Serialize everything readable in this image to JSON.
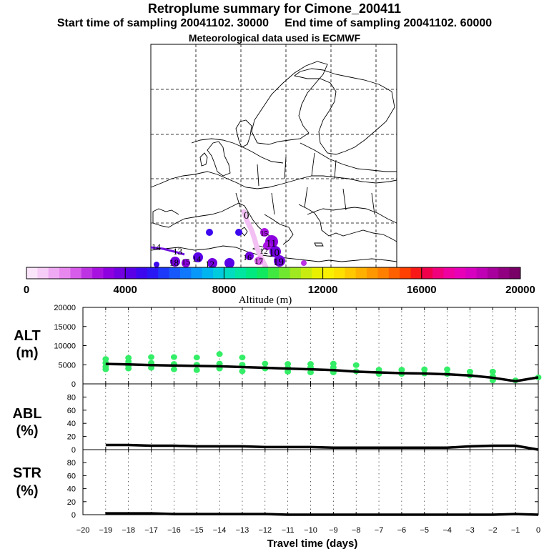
{
  "title": "Retroplume summary for Cimone_200411",
  "subtitle_start": "Start time of sampling 20041102. 30000",
  "subtitle_end": "End time of sampling 20041102. 60000",
  "met_line": "Meteorological data used is ECMWF",
  "map": {
    "plume_labels": [
      "0",
      "15",
      "11",
      "12",
      "10",
      "17",
      "19",
      "16",
      "14",
      "13",
      "18",
      "15",
      "12",
      "14"
    ]
  },
  "colorbar": {
    "label": "Altitude (m)",
    "tick_labels": [
      "0",
      "4000",
      "8000",
      "12000",
      "16000",
      "20000"
    ],
    "colors": [
      "#fbe5fb",
      "#f6cdf6",
      "#efaaf3",
      "#e888ef",
      "#d75ce9",
      "#bd33e3",
      "#a812e0",
      "#8d00e0",
      "#7200e0",
      "#5a00e6",
      "#3d08ee",
      "#2a18f4",
      "#1c38f8",
      "#1758fc",
      "#0f78fc",
      "#0898fa",
      "#00b4f0",
      "#00ccdd",
      "#00dcc0",
      "#00e6a0",
      "#00e880",
      "#10e860",
      "#40e840",
      "#70e830",
      "#a0e820",
      "#c8ec10",
      "#e8f000",
      "#f8f000",
      "#fde000",
      "#ffc800",
      "#ffb000",
      "#ff9800",
      "#ff8000",
      "#ff6000",
      "#ff4000",
      "#f81818",
      "#f0004a",
      "#f0007a",
      "#ef00a0",
      "#e800b8",
      "#d800c0",
      "#c000b4",
      "#a8009c",
      "#900080",
      "#780066"
    ]
  },
  "panels": {
    "alt": {
      "label_line1": "ALT",
      "label_line2": "(m)"
    },
    "abl": {
      "label_line1": "ABL",
      "label_line2": "(%)"
    },
    "str": {
      "label_line1": "STR",
      "label_line2": "(%)"
    }
  },
  "chart_data": [
    {
      "type": "line",
      "name": "ALT",
      "ylabel": "ALT (m)",
      "ylim": [
        0,
        20000
      ],
      "yticks": [
        0,
        5000,
        10000,
        15000,
        20000
      ],
      "x": [
        -19,
        -18,
        -17,
        -16,
        -15,
        -14,
        -13,
        -12,
        -11,
        -10,
        -9,
        -8,
        -7,
        -6,
        -5,
        -4,
        -3,
        -2,
        -1,
        0
      ],
      "mean": [
        5200,
        5100,
        4900,
        4800,
        4700,
        4600,
        4400,
        4200,
        4000,
        3800,
        3600,
        3200,
        3000,
        2800,
        2700,
        2500,
        2200,
        1600,
        700,
        1700
      ],
      "scatter": {
        "color": "#33ee66",
        "x": [
          -19,
          -19,
          -19,
          -19,
          -18,
          -18,
          -18,
          -18,
          -17,
          -17,
          -17,
          -16,
          -16,
          -16,
          -15,
          -15,
          -15,
          -14,
          -14,
          -14,
          -13,
          -13,
          -13,
          -12,
          -12,
          -11,
          -11,
          -11,
          -10,
          -10,
          -10,
          -9,
          -9,
          -9,
          -8,
          -8,
          -7,
          -7,
          -6,
          -6,
          -5,
          -5,
          -4,
          -4,
          -3,
          -3,
          -2,
          -2,
          -2,
          -1,
          0
        ],
        "y": [
          6500,
          5500,
          4500,
          3800,
          6800,
          5800,
          4800,
          4000,
          7000,
          5500,
          4200,
          7000,
          5200,
          3800,
          6900,
          5000,
          3600,
          7800,
          5300,
          4000,
          6900,
          5000,
          3300,
          5300,
          4000,
          5200,
          4200,
          3200,
          5200,
          4300,
          3000,
          5300,
          4300,
          3000,
          4900,
          3300,
          3700,
          2600,
          3700,
          2600,
          3800,
          2700,
          3800,
          2600,
          3200,
          2200,
          3200,
          2000,
          900,
          900,
          1700
        ]
      },
      "xlim": [
        -20,
        0
      ],
      "xlabel": "Travel time (days)"
    },
    {
      "type": "line",
      "name": "ABL",
      "ylabel": "ABL (%)",
      "ylim": [
        0,
        100
      ],
      "yticks": [
        0,
        20,
        40,
        60,
        80
      ],
      "x": [
        -19,
        -18,
        -17,
        -16,
        -15,
        -14,
        -13,
        -12,
        -11,
        -10,
        -9,
        -8,
        -7,
        -6,
        -5,
        -4,
        -3,
        -2,
        -1,
        0
      ],
      "values": [
        7,
        7,
        6,
        6,
        5,
        5,
        5,
        4,
        4,
        4,
        3,
        3,
        3,
        3,
        3,
        3,
        5,
        6,
        6,
        0
      ]
    },
    {
      "type": "line",
      "name": "STR",
      "ylabel": "STR (%)",
      "ylim": [
        0,
        100
      ],
      "yticks": [
        0,
        20,
        40,
        60,
        80
      ],
      "x": [
        -19,
        -18,
        -17,
        -16,
        -15,
        -14,
        -13,
        -12,
        -11,
        -10,
        -9,
        -8,
        -7,
        -6,
        -5,
        -4,
        -3,
        -2,
        -1,
        0
      ],
      "values": [
        2,
        2,
        2,
        1,
        1,
        1,
        1,
        1,
        0,
        0,
        0,
        0,
        0,
        0,
        0,
        0,
        0,
        0,
        1,
        0
      ],
      "xticks": [
        -20,
        -19,
        -18,
        -17,
        -16,
        -15,
        -14,
        -13,
        -12,
        -11,
        -10,
        -9,
        -8,
        -7,
        -6,
        -5,
        -4,
        -3,
        -2,
        -1,
        0
      ],
      "xtick_labels": [
        "−20",
        "−19",
        "−18",
        "−17",
        "−16",
        "−15",
        "−14",
        "−13",
        "−12",
        "−11",
        "−10",
        "−9",
        "−8",
        "−7",
        "−6",
        "−5",
        "−4",
        "−3",
        "−2",
        "−1",
        "0"
      ]
    }
  ]
}
